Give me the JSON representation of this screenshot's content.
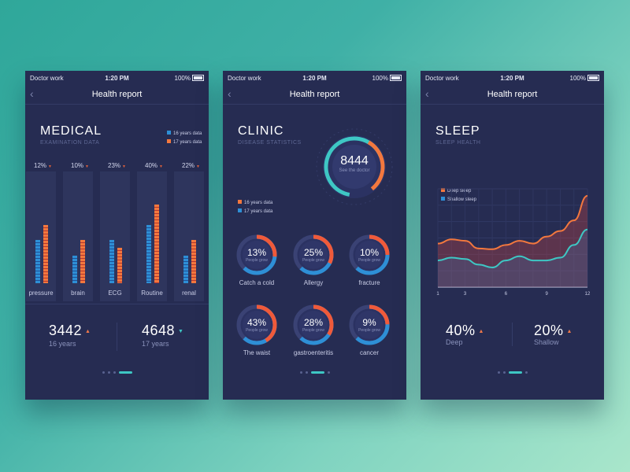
{
  "colors": {
    "blue": "#2e8fd6",
    "orange": "#f3783e",
    "teal": "#3ec7c4",
    "red": "#e0463a"
  },
  "status": {
    "carrier": "Doctor work",
    "time": "1:20 PM",
    "battery": "100%"
  },
  "nav": {
    "title": "Health report",
    "back": "‹"
  },
  "medical": {
    "title": "MEDICAL",
    "subtitle": "EXAMINATION DATA",
    "legend": [
      "16 years data",
      "17 years data"
    ],
    "columns": [
      {
        "label": "pressure",
        "pct": "12%",
        "v16": 0.55,
        "v17": 0.74
      },
      {
        "label": "brain",
        "pct": "10%",
        "v16": 0.35,
        "v17": 0.55
      },
      {
        "label": "ECG",
        "pct": "23%",
        "v16": 0.55,
        "v17": 0.45
      },
      {
        "label": "Routine",
        "pct": "40%",
        "v16": 0.74,
        "v17": 1.0
      },
      {
        "label": "renal",
        "pct": "22%",
        "v16": 0.35,
        "v17": 0.55
      }
    ],
    "stats": [
      {
        "value": "3442",
        "label": "16 years"
      },
      {
        "value": "4648",
        "label": "17 years"
      }
    ]
  },
  "clinic": {
    "title": "CLINIC",
    "subtitle": "DISEASE STATISTICS",
    "center_value": "8444",
    "center_label": "See the doctor",
    "legend": [
      "16 years data",
      "17 years data"
    ],
    "ring_sub": "People grow",
    "rings": [
      {
        "pct": "13%",
        "label": "Catch a cold",
        "value": 13
      },
      {
        "pct": "25%",
        "label": "Allergy",
        "value": 25
      },
      {
        "pct": "10%",
        "label": "fracture",
        "value": 10
      },
      {
        "pct": "43%",
        "label": "The waist",
        "value": 43
      },
      {
        "pct": "28%",
        "label": "gastroenteritis",
        "value": 28
      },
      {
        "pct": "9%",
        "label": "cancer",
        "value": 9
      }
    ]
  },
  "sleep": {
    "title": "SLEEP",
    "subtitle": "SLEEP HEALTH",
    "legend": [
      "Deep sleep",
      "Shallow sleep"
    ],
    "x_ticks": [
      "1",
      "3",
      "6",
      "9",
      "12"
    ],
    "stats": [
      {
        "value": "40%",
        "label": "Deep"
      },
      {
        "value": "20%",
        "label": "Shallow"
      }
    ]
  },
  "chart_data": {
    "type": "area",
    "x": [
      1,
      2,
      3,
      4,
      5,
      6,
      7,
      8,
      9,
      10,
      11,
      12
    ],
    "series": [
      {
        "name": "Deep sleep",
        "values": [
          0.62,
          0.68,
          0.66,
          0.55,
          0.54,
          0.6,
          0.66,
          0.62,
          0.72,
          0.8,
          0.95,
          1.3
        ]
      },
      {
        "name": "Shallow sleep",
        "values": [
          0.38,
          0.42,
          0.4,
          0.32,
          0.28,
          0.38,
          0.44,
          0.38,
          0.38,
          0.42,
          0.6,
          0.82
        ]
      }
    ],
    "xlim": [
      1,
      12
    ],
    "legend": "top-left",
    "grid": true
  }
}
